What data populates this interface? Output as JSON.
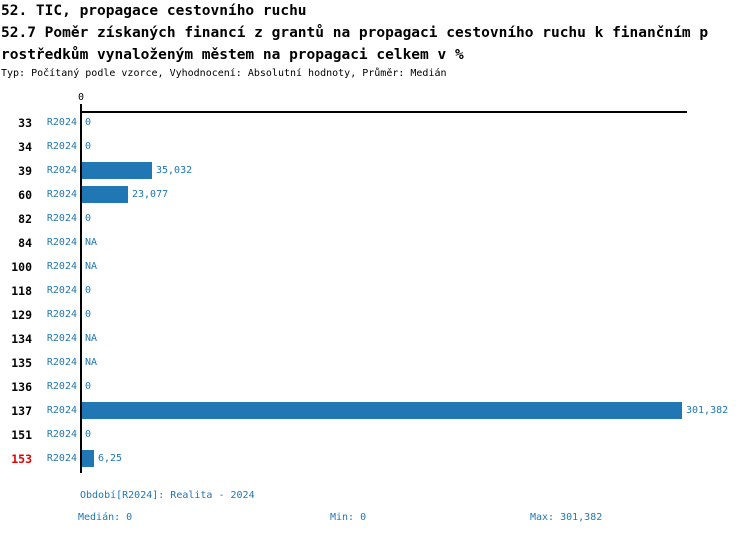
{
  "title": {
    "line1": "52. TIC, propagace cestovního ruchu",
    "line2": "52.7 Poměr získaných financí z grantů na propagaci cestovního ruchu k finančním p",
    "line3": "rostředkům vynaloženým městem na propagaci celkem v %",
    "meta": "Typ: Počítaný podle vzorce, Vyhodnocení: Absolutní hodnoty, Průměr: Medián"
  },
  "chart_data": {
    "type": "bar",
    "orientation": "horizontal",
    "title": "52.7 Poměr získaných financí z grantů na propagaci cestovního ruchu k finančním prostředkům vynaloženým městem na propagaci celkem v %",
    "series_label": "R2024",
    "categories": [
      "33",
      "34",
      "39",
      "60",
      "82",
      "84",
      "100",
      "118",
      "129",
      "134",
      "135",
      "136",
      "137",
      "151",
      "153"
    ],
    "values": [
      0,
      0,
      35.032,
      23.077,
      0,
      null,
      null,
      0,
      0,
      null,
      null,
      0,
      301.382,
      0,
      6.25
    ],
    "value_labels": [
      "0",
      "0",
      "35,032",
      "23,077",
      "0",
      "NA",
      "NA",
      "0",
      "0",
      "NA",
      "NA",
      "0",
      "301,382",
      "0",
      "6,25"
    ],
    "highlighted_category": "153",
    "axis": {
      "tick_label": "0",
      "xlim": [
        0,
        305
      ],
      "grid": false
    },
    "legend_position": "none",
    "bar_color": "#2077b4",
    "highlight_color": "#e00000"
  },
  "footer": {
    "period": "Období[R2024]: Realita - 2024",
    "median": "Medián: 0",
    "min": "Min: 0",
    "max": "Max: 301,382"
  },
  "colors": {
    "accent_blue": "#2077b4",
    "highlight_red": "#e00000",
    "axis_black": "#000000",
    "background": "#ffffff"
  }
}
